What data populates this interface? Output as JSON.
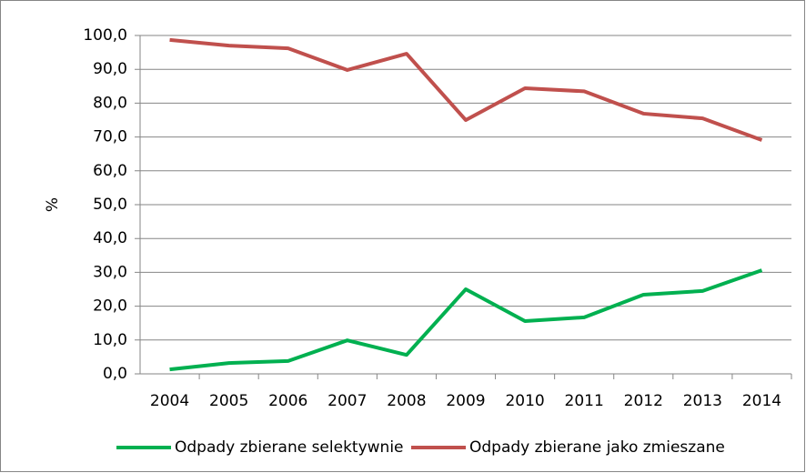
{
  "chart_data": {
    "type": "line",
    "y_label": "%",
    "categories": [
      "2004",
      "2005",
      "2006",
      "2007",
      "2008",
      "2009",
      "2010",
      "2011",
      "2012",
      "2013",
      "2014"
    ],
    "series": [
      {
        "name": "Odpady zbierane selektywnie",
        "color": "#00b050",
        "values": [
          1.3,
          3.2,
          3.8,
          9.9,
          5.6,
          25.0,
          15.6,
          16.7,
          23.4,
          24.5,
          30.6
        ]
      },
      {
        "name": "Odpady zbierane jako zmieszane",
        "color": "#c0504d",
        "values": [
          98.7,
          97.0,
          96.2,
          89.8,
          94.6,
          75.0,
          84.4,
          83.5,
          76.9,
          75.5,
          69.1
        ]
      }
    ],
    "ylim": [
      0,
      100
    ],
    "yticks": [
      {
        "value": 0,
        "label": "0,0"
      },
      {
        "value": 10,
        "label": "10,0"
      },
      {
        "value": 20,
        "label": "20,0"
      },
      {
        "value": 30,
        "label": "30,0"
      },
      {
        "value": 40,
        "label": "40,0"
      },
      {
        "value": 50,
        "label": "50,0"
      },
      {
        "value": 60,
        "label": "60,0"
      },
      {
        "value": 70,
        "label": "70,0"
      },
      {
        "value": 80,
        "label": "80,0"
      },
      {
        "value": 90,
        "label": "90,0"
      },
      {
        "value": 100,
        "label": "100,0"
      }
    ],
    "grid": true,
    "legend": "bottom"
  }
}
